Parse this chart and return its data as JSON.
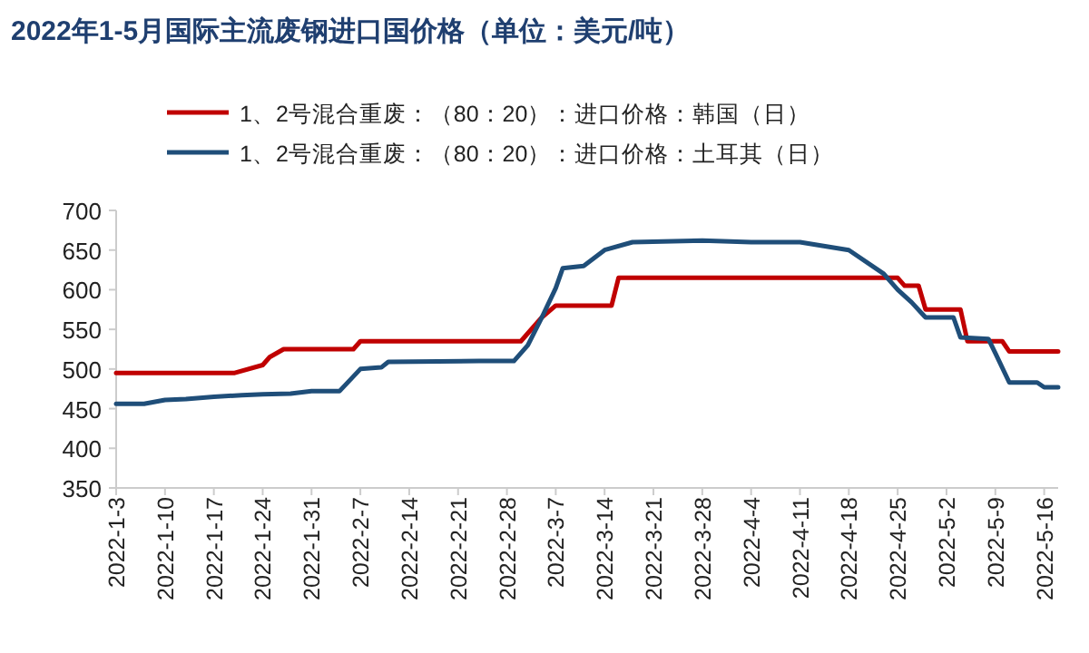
{
  "chart_data": {
    "type": "line",
    "title": "2022年1-5月国际主流废钢进口国价格（单位：美元/吨）",
    "legend": "top",
    "series": [
      {
        "name": "1、2号混合重废：（80：20）：进口价格：韩国（日）",
        "color": "#c00000",
        "x": [
          "2022-01-03",
          "2022-01-20",
          "2022-01-24",
          "2022-01-25",
          "2022-01-27",
          "2022-02-06",
          "2022-02-07",
          "2022-03-02",
          "2022-03-05",
          "2022-03-07",
          "2022-03-15",
          "2022-03-16",
          "2022-04-25",
          "2022-04-26",
          "2022-04-28",
          "2022-04-29",
          "2022-05-04",
          "2022-05-05",
          "2022-05-10",
          "2022-05-11",
          "2022-05-18"
        ],
        "values": [
          495,
          495,
          505,
          515,
          525,
          525,
          535,
          535,
          565,
          580,
          580,
          615,
          615,
          605,
          605,
          575,
          575,
          535,
          535,
          522,
          522
        ]
      },
      {
        "name": "1、2号混合重废：（80：20）：进口价格：土耳其（日）",
        "color": "#1f4e79",
        "x": [
          "2022-01-03",
          "2022-01-07",
          "2022-01-10",
          "2022-01-13",
          "2022-01-17",
          "2022-01-21",
          "2022-01-24",
          "2022-01-28",
          "2022-01-31",
          "2022-02-04",
          "2022-02-07",
          "2022-02-10",
          "2022-02-11",
          "2022-02-24",
          "2022-03-01",
          "2022-03-03",
          "2022-03-05",
          "2022-03-07",
          "2022-03-08",
          "2022-03-11",
          "2022-03-14",
          "2022-03-18",
          "2022-03-28",
          "2022-04-04",
          "2022-04-11",
          "2022-04-18",
          "2022-04-23",
          "2022-04-25",
          "2022-04-27",
          "2022-04-29",
          "2022-05-03",
          "2022-05-04",
          "2022-05-08",
          "2022-05-09",
          "2022-05-11",
          "2022-05-15",
          "2022-05-16",
          "2022-05-18"
        ],
        "values": [
          456,
          456,
          461,
          462,
          465,
          467,
          468,
          469,
          472,
          472,
          500,
          502,
          509,
          510,
          510,
          530,
          565,
          602,
          627,
          630,
          650,
          660,
          662,
          660,
          660,
          650,
          620,
          600,
          584,
          565,
          565,
          540,
          538,
          520,
          483,
          483,
          477,
          477
        ]
      }
    ],
    "xlim": [
      "2022-01-03",
      "2022-05-18"
    ],
    "xticks": [
      {
        "value": "2022-01-03",
        "label": "2022-1-3"
      },
      {
        "value": "2022-01-10",
        "label": "2022-1-10"
      },
      {
        "value": "2022-01-17",
        "label": "2022-1-17"
      },
      {
        "value": "2022-01-24",
        "label": "2022-1-24"
      },
      {
        "value": "2022-01-31",
        "label": "2022-1-31"
      },
      {
        "value": "2022-02-07",
        "label": "2022-2-7"
      },
      {
        "value": "2022-02-14",
        "label": "2022-2-14"
      },
      {
        "value": "2022-02-21",
        "label": "2022-2-21"
      },
      {
        "value": "2022-02-28",
        "label": "2022-2-28"
      },
      {
        "value": "2022-03-07",
        "label": "2022-3-7"
      },
      {
        "value": "2022-03-14",
        "label": "2022-3-14"
      },
      {
        "value": "2022-03-21",
        "label": "2022-3-21"
      },
      {
        "value": "2022-03-28",
        "label": "2022-3-28"
      },
      {
        "value": "2022-04-04",
        "label": "2022-4-4"
      },
      {
        "value": "2022-04-11",
        "label": "2022-4-11"
      },
      {
        "value": "2022-04-18",
        "label": "2022-4-18"
      },
      {
        "value": "2022-04-25",
        "label": "2022-4-25"
      },
      {
        "value": "2022-05-02",
        "label": "2022-5-2"
      },
      {
        "value": "2022-05-09",
        "label": "2022-5-9"
      },
      {
        "value": "2022-05-16",
        "label": "2022-5-16"
      }
    ],
    "ylim": [
      350,
      700
    ],
    "yticks": [
      350,
      400,
      450,
      500,
      550,
      600,
      650,
      700
    ],
    "grid": false,
    "marker": "none",
    "line_style": "solid"
  }
}
